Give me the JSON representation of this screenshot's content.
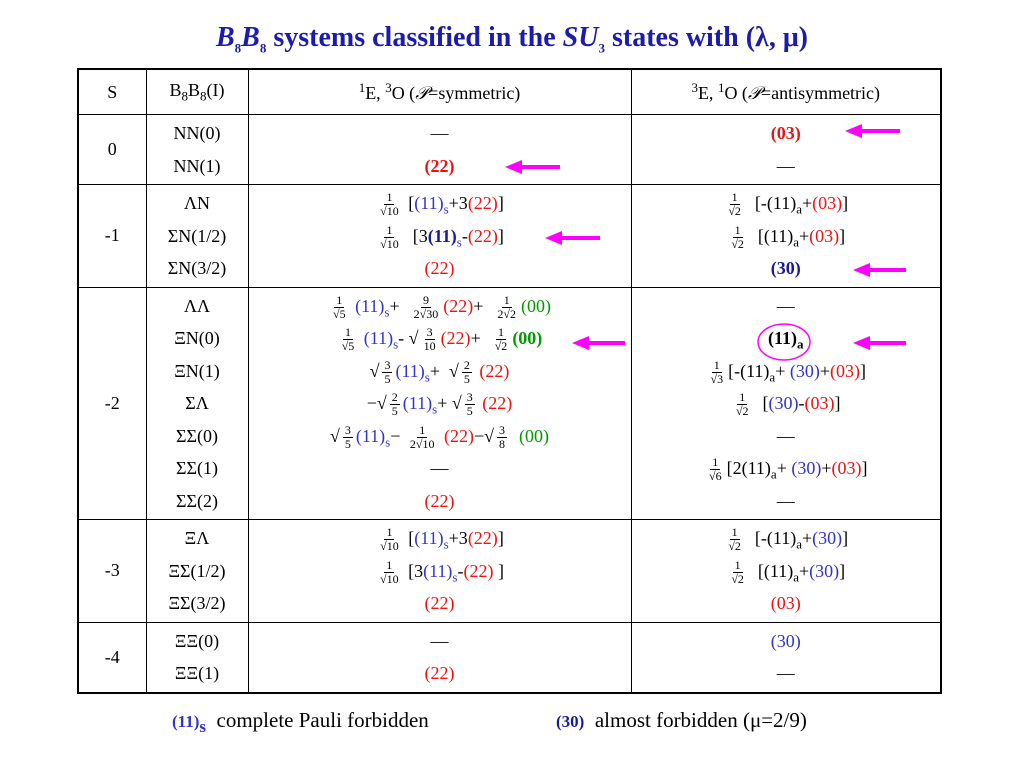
{
  "title": {
    "color": "#1c1ca8",
    "tokens": [
      {
        "text": "B",
        "italic": true
      },
      {
        "sub": "8"
      },
      {
        "text": "B",
        "italic": true
      },
      {
        "sub": "8"
      },
      " systems classified in the ",
      {
        "text": "SU",
        "italic": true
      },
      {
        "sub": "3"
      },
      " states with (λ, μ)"
    ]
  },
  "table": {
    "header": [
      [
        "S"
      ],
      [
        "B",
        {
          "sub": "8"
        },
        "B",
        {
          "sub": "8"
        },
        "(I)"
      ],
      [
        {
          "sup": "1"
        },
        "E,  ",
        {
          "sup": "3"
        },
        "O  (",
        {
          "text": "𝒫",
          "italic": true
        },
        "=symmetric)"
      ],
      [
        {
          "sup": "3"
        },
        "E, ",
        {
          "sup": "1"
        },
        "O (",
        {
          "text": "𝒫",
          "italic": true
        },
        "=antisymmetric)"
      ]
    ],
    "rows": [
      {
        "s": "0",
        "pairs": [
          "NN(0)",
          "NN(1)"
        ],
        "symmetric": [
          [
            "—"
          ],
          [
            {
              "text": "(22)",
              "color": "#ee1111",
              "bold": true
            }
          ]
        ],
        "antisymmetric": [
          [
            {
              "text": "(03)",
              "color": "#ee1111",
              "bold": true
            }
          ],
          [
            "—"
          ]
        ]
      },
      {
        "s": "-1",
        "pairs": [
          "ΛN",
          "ΣN(1/2)",
          "ΣN(3/2)"
        ],
        "symmetric": [
          [
            {
              "frac": [
                "1",
                "√10"
              ]
            },
            " [",
            {
              "text": "(11)",
              "color": "#3333cc"
            },
            {
              "sub": "s",
              "color": "#3333cc"
            },
            "+3",
            {
              "text": "(22)",
              "color": "#ee1111"
            },
            "]"
          ],
          [
            {
              "frac": [
                "1",
                "√10"
              ]
            },
            "  [3",
            {
              "text": "(11)",
              "color": "#1a1a99",
              "bold": true
            },
            {
              "sub": "s",
              "color": "#3333cc"
            },
            "-",
            {
              "text": "(22)",
              "color": "#ee1111"
            },
            "]"
          ],
          [
            {
              "text": "(22)",
              "color": "#ee1111"
            }
          ]
        ],
        "antisymmetric": [
          [
            {
              "frac": [
                "1",
                "√2"
              ]
            },
            "  [-(11)",
            {
              "sub": "a"
            },
            "+",
            {
              "text": "(03)",
              "color": "#ee1111"
            },
            "]"
          ],
          [
            {
              "frac": [
                "1",
                "√2"
              ]
            },
            "  [(11)",
            {
              "sub": "a"
            },
            "+",
            {
              "text": "(03)",
              "color": "#ee1111"
            },
            "]"
          ],
          [
            {
              "text": "(30)",
              "color": "#1a1a99",
              "bold": true
            }
          ]
        ]
      },
      {
        "s": "-2",
        "pairs": [
          "ΛΛ",
          "ΞN(0)",
          "ΞN(1)",
          "ΣΛ",
          "ΣΣ(0)",
          "ΣΣ(1)",
          "ΣΣ(2)"
        ],
        "symmetric": [
          [
            {
              "frac": [
                "1",
                "√5"
              ]
            },
            " ",
            {
              "text": "(11)",
              "color": "#3333cc"
            },
            {
              "sub": "s",
              "color": "#3333cc"
            },
            "+  ",
            {
              "frac": [
                "9",
                "2√30"
              ]
            },
            {
              "text": "(22)",
              "color": "#ee1111"
            },
            "+  ",
            {
              "frac": [
                "1",
                "2√2"
              ]
            },
            {
              "text": "(00)",
              "color": "#009900"
            }
          ],
          [
            {
              "frac": [
                "1",
                "√5"
              ]
            },
            " ",
            {
              "text": "(11)",
              "color": "#3333cc"
            },
            {
              "sub": "s",
              "color": "#3333cc"
            },
            "- ",
            "√",
            {
              "frac": [
                "3",
                "10"
              ]
            },
            {
              "text": "(22)",
              "color": "#ee1111"
            },
            "+  ",
            {
              "frac": [
                "1",
                "√2"
              ]
            },
            {
              "text": "(00)",
              "color": "#009900",
              "bold": true
            }
          ],
          [
            "√",
            {
              "frac": [
                "3",
                "5"
              ]
            },
            {
              "text": "(11)",
              "color": "#3333cc"
            },
            {
              "sub": "s",
              "color": "#3333cc"
            },
            "+  ",
            "√",
            {
              "frac": [
                "2",
                "5"
              ]
            },
            " ",
            {
              "text": "(22)",
              "color": "#ee1111"
            }
          ],
          [
            "−√",
            {
              "frac": [
                "2",
                "5"
              ]
            },
            {
              "text": "(11)",
              "color": "#3333cc"
            },
            {
              "sub": "s",
              "color": "#3333cc"
            },
            "+ ",
            "√",
            {
              "frac": [
                "3",
                "5"
              ]
            },
            " ",
            {
              "text": "(22)",
              "color": "#ee1111"
            }
          ],
          [
            "√",
            {
              "frac": [
                "3",
                "5"
              ]
            },
            {
              "text": "(11)",
              "color": "#3333cc"
            },
            {
              "sub": "s",
              "color": "#3333cc"
            },
            "− ",
            {
              "frac": [
                "1",
                "2√10"
              ]
            },
            " ",
            {
              "text": "(22)",
              "color": "#ee1111"
            },
            "−",
            "√",
            {
              "frac": [
                "3",
                "8"
              ]
            },
            "  ",
            {
              "text": "(00)",
              "color": "#009900"
            }
          ],
          [
            "—"
          ],
          [
            {
              "text": "(22)",
              "color": "#ee1111"
            }
          ]
        ],
        "antisymmetric": [
          [
            "—"
          ],
          [
            {
              "text": "(11)",
              "bold": true
            },
            {
              "sub": "a",
              "bold": true
            }
          ],
          [
            {
              "frac": [
                "1",
                "√3"
              ]
            },
            "[-(11)",
            {
              "sub": "a"
            },
            "+ ",
            {
              "text": "(30)",
              "color": "#3333cc"
            },
            "+",
            {
              "text": "(03)",
              "color": "#ee1111"
            },
            "]"
          ],
          [
            {
              "frac": [
                "1",
                "√2"
              ]
            },
            "  [",
            {
              "text": "(30)",
              "color": "#3333cc"
            },
            "-",
            {
              "text": "(03)",
              "color": "#ee1111"
            },
            "]"
          ],
          [
            "—"
          ],
          [
            {
              "frac": [
                "1",
                "√6"
              ]
            },
            "[2(11)",
            {
              "sub": "a"
            },
            "+ ",
            {
              "text": "(30)",
              "color": "#3333cc"
            },
            "+",
            {
              "text": "(03)",
              "color": "#ee1111"
            },
            "]"
          ],
          [
            "—"
          ]
        ]
      },
      {
        "s": "-3",
        "pairs": [
          "ΞΛ",
          "ΞΣ(1/2)",
          "ΞΣ(3/2)"
        ],
        "symmetric": [
          [
            {
              "frac": [
                "1",
                "√10"
              ]
            },
            " [",
            {
              "text": "(11)",
              "color": "#3333cc"
            },
            {
              "sub": "s",
              "color": "#3333cc"
            },
            "+3",
            {
              "text": "(22)",
              "color": "#ee1111"
            },
            "]"
          ],
          [
            {
              "frac": [
                "1",
                "√10"
              ]
            },
            " [3",
            {
              "text": "(11)",
              "color": "#3333cc"
            },
            {
              "sub": "s",
              "color": "#3333cc"
            },
            "-",
            {
              "text": "(22)",
              "color": "#ee1111"
            },
            " ]"
          ],
          [
            {
              "text": "(22)",
              "color": "#ee1111"
            }
          ]
        ],
        "antisymmetric": [
          [
            {
              "frac": [
                "1",
                "√2"
              ]
            },
            "  [-(11)",
            {
              "sub": "a"
            },
            "+",
            {
              "text": "(30)",
              "color": "#3333cc"
            },
            "]"
          ],
          [
            {
              "frac": [
                "1",
                "√2"
              ]
            },
            "  [(11)",
            {
              "sub": "a"
            },
            "+",
            {
              "text": "(30)",
              "color": "#3333cc"
            },
            "]"
          ],
          [
            {
              "text": "(03)",
              "color": "#ee1111"
            }
          ]
        ]
      },
      {
        "s": "-4",
        "pairs": [
          "ΞΞ(0)",
          "ΞΞ(1)"
        ],
        "symmetric": [
          [
            "—"
          ],
          [
            {
              "text": "(22)",
              "color": "#ee1111"
            }
          ]
        ],
        "antisymmetric": [
          [
            {
              "text": "(30)",
              "color": "#3333cc"
            }
          ],
          [
            "—"
          ]
        ]
      }
    ]
  },
  "footer": [
    [
      {
        "text": "(11)",
        "color": "#3333cc",
        "bold": true
      },
      {
        "sub": "s",
        "color": "#3333cc",
        "bold": true
      },
      "  complete Pauli forbidden"
    ],
    [
      {
        "text": "(30)",
        "color": "#1a1a99",
        "bold": true
      },
      "  almost forbidden (μ=2/9)"
    ]
  ]
}
